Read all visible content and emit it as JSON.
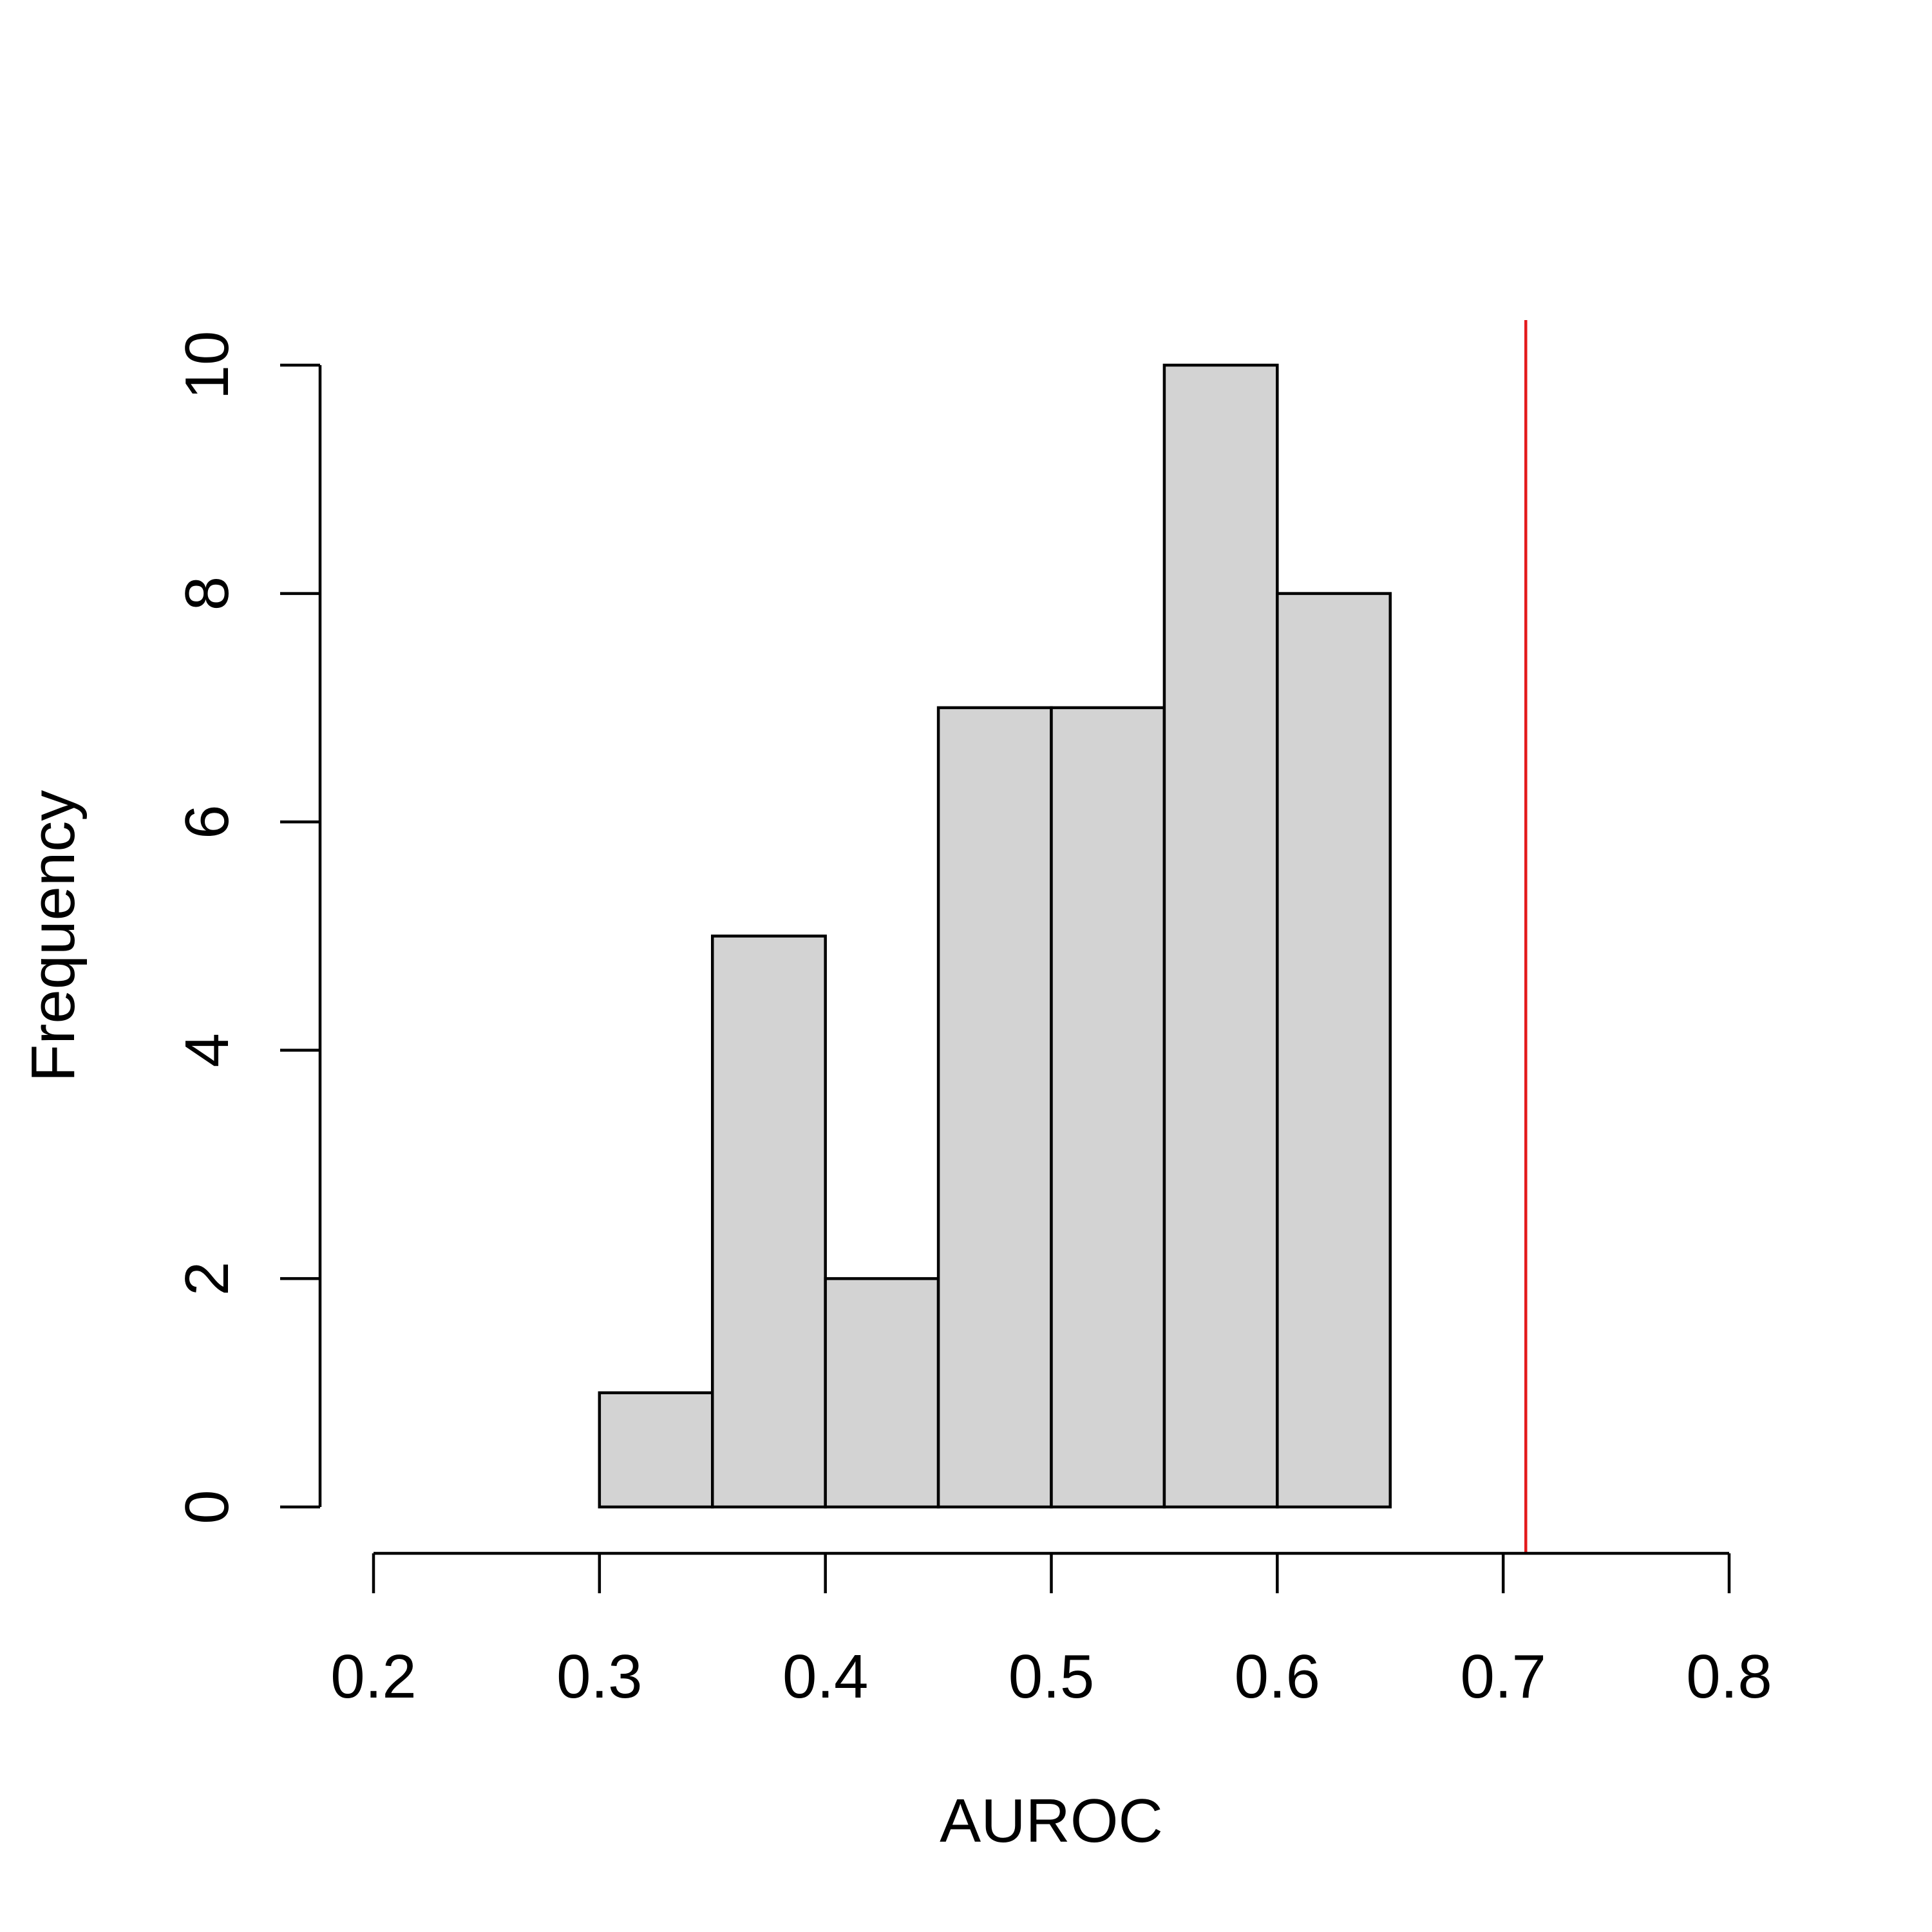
{
  "chart_data": {
    "type": "bar",
    "title": "",
    "xlabel": "AUROC",
    "ylabel": "Frequency",
    "bin_edges": [
      0.3,
      0.35,
      0.4,
      0.45,
      0.5,
      0.55,
      0.6,
      0.65
    ],
    "values": [
      1,
      5,
      2,
      7,
      7,
      10,
      8
    ],
    "xlim": [
      0.2,
      0.8
    ],
    "ylim": [
      0,
      10
    ],
    "x_ticks": [
      0.2,
      0.3,
      0.4,
      0.5,
      0.6,
      0.7,
      0.8
    ],
    "x_tick_labels": [
      "0.2",
      "0.3",
      "0.4",
      "0.5",
      "0.6",
      "0.7",
      "0.8"
    ],
    "y_ticks": [
      0,
      2,
      4,
      6,
      8,
      10
    ],
    "y_tick_labels": [
      "0",
      "2",
      "4",
      "6",
      "8",
      "10"
    ],
    "reference_line": {
      "x": 0.71,
      "color": "#e31a1c"
    },
    "bar_fill": "#d3d3d3",
    "grid": false,
    "legend": "none"
  }
}
